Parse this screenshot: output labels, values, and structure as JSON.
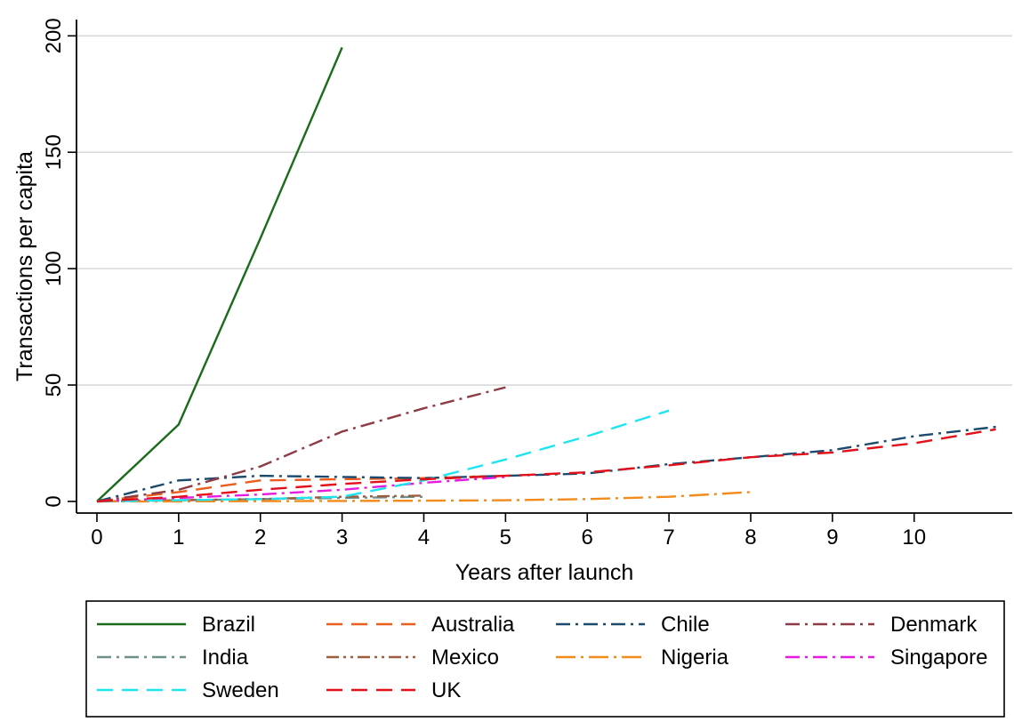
{
  "chart_data": {
    "type": "line",
    "title": "",
    "xlabel": "Years after launch",
    "ylabel": "Transactions per capita",
    "xlim": [
      -0.25,
      11.2
    ],
    "ylim": [
      -5,
      207
    ],
    "x_ticks": [
      0,
      1,
      2,
      3,
      4,
      5,
      6,
      7,
      8,
      9,
      10
    ],
    "y_ticks": [
      0,
      50,
      100,
      150,
      200
    ],
    "x_tick_labels": [
      "0",
      "1",
      "2",
      "3",
      "4",
      "5",
      "6",
      "7",
      "8",
      "9",
      "10"
    ],
    "y_tick_labels": [
      "0",
      "50",
      "100",
      "150",
      "200"
    ],
    "grid": "horizontal",
    "legend_placement": "bottom",
    "series": [
      {
        "name": "Brazil",
        "color": "#1a6b1a",
        "dash": "solid",
        "x": [
          0,
          1,
          2,
          3
        ],
        "y": [
          0,
          33,
          113,
          195
        ]
      },
      {
        "name": "Australia",
        "color": "#ea5d1c",
        "dash": "longdash",
        "x": [
          0,
          1,
          2,
          3,
          4,
          5
        ],
        "y": [
          0,
          4,
          9,
          9.5,
          10,
          11
        ]
      },
      {
        "name": "Chile",
        "color": "#1c4a6e",
        "dash": "dashdot",
        "x": [
          0,
          1,
          2,
          3,
          4,
          5,
          6,
          7,
          8,
          9,
          10,
          11
        ],
        "y": [
          0,
          9,
          11,
          10.5,
          10,
          11,
          12,
          16,
          19,
          22,
          28,
          32
        ]
      },
      {
        "name": "Denmark",
        "color": "#8e3b46",
        "dash": "dashdot",
        "x": [
          0,
          1,
          2,
          3,
          4,
          5
        ],
        "y": [
          0,
          5,
          15,
          30,
          40,
          49
        ]
      },
      {
        "name": "India",
        "color": "#6f8f8a",
        "dash": "dashdot",
        "x": [
          0,
          1,
          2,
          3,
          4
        ],
        "y": [
          0,
          0.5,
          1,
          1.5,
          2
        ]
      },
      {
        "name": "Mexico",
        "color": "#9c5e3c",
        "dash": "dashdotdot",
        "x": [
          0,
          1,
          2,
          3,
          4
        ],
        "y": [
          0,
          0.5,
          1,
          2,
          2.5
        ]
      },
      {
        "name": "Nigeria",
        "color": "#f28b1b",
        "dash": "longdashdot",
        "x": [
          0,
          1,
          2,
          3,
          4,
          5,
          6,
          7,
          8
        ],
        "y": [
          0,
          0,
          0.1,
          0.2,
          0.3,
          0.5,
          1,
          2,
          4
        ]
      },
      {
        "name": "Singapore",
        "color": "#e51ce0",
        "dash": "dashdot",
        "x": [
          0,
          1,
          2,
          3,
          4,
          5
        ],
        "y": [
          0,
          1.5,
          3,
          5,
          8,
          10.5
        ]
      },
      {
        "name": "Sweden",
        "color": "#1ee4f0",
        "dash": "longdash",
        "x": [
          0,
          1,
          2,
          3,
          4,
          5,
          6,
          7
        ],
        "y": [
          0,
          0.5,
          1,
          2,
          9,
          18,
          28,
          39
        ]
      },
      {
        "name": "UK",
        "color": "#e3101a",
        "dash": "longdash",
        "x": [
          0,
          1,
          2,
          3,
          4,
          5,
          6,
          7,
          8,
          9,
          10,
          11
        ],
        "y": [
          0,
          2,
          5,
          7.5,
          9.5,
          11,
          12.5,
          15.5,
          19,
          21,
          25,
          31
        ]
      }
    ]
  }
}
